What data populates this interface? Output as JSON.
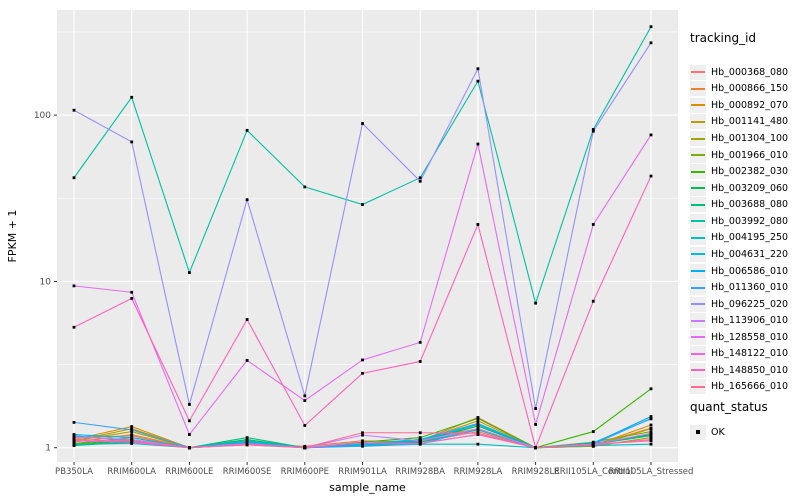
{
  "chart_data": {
    "type": "line",
    "title": "",
    "xlabel": "sample_name",
    "ylabel": "FPKM + 1",
    "y_scale": "log10",
    "y_ticks": [
      1,
      10,
      100
    ],
    "y_tick_labels": [
      "1",
      "10",
      "100"
    ],
    "y_minor_ticks": [
      3.162,
      31.623,
      316.228
    ],
    "ylim": [
      0.82,
      430
    ],
    "grid": "on",
    "legend_position": "right",
    "point_shape": "filled-square",
    "point_color": "#000000",
    "colors": {
      "panel_background": "#EBEBEB",
      "gridline": "#FFFFFF",
      "tick_text": "#4D4D4D",
      "tick_mark": "#333333"
    },
    "categories": [
      "PB350LA",
      "RRIM600LA",
      "RRIM600LE",
      "RRIM600SE",
      "RRIM600PE",
      "RRIM901LA",
      "RRIM928BA",
      "RRIM928LA",
      "RRIM928LE",
      "RRII105LA_Control",
      "RRII105LA_Stressed"
    ],
    "series": [
      {
        "name": "Hb_000368_080",
        "color": "#F8766D",
        "values": [
          1.15,
          1.18,
          1.0,
          1.05,
          1.02,
          1.1,
          1.08,
          1.25,
          1.0,
          1.05,
          1.2
        ]
      },
      {
        "name": "Hb_000866_150",
        "color": "#EB8335",
        "values": [
          1.08,
          1.2,
          1.0,
          1.06,
          1.0,
          1.05,
          1.1,
          1.52,
          1.0,
          1.04,
          1.31
        ]
      },
      {
        "name": "Hb_000892_070",
        "color": "#D89000",
        "values": [
          1.12,
          1.34,
          1.0,
          1.08,
          1.0,
          1.05,
          1.1,
          1.45,
          1.0,
          1.03,
          1.37
        ]
      },
      {
        "name": "Hb_001141_480",
        "color": "#C09B00",
        "values": [
          1.1,
          1.3,
          1.0,
          1.05,
          1.0,
          1.04,
          1.08,
          1.35,
          1.0,
          1.02,
          1.3
        ]
      },
      {
        "name": "Hb_001304_100",
        "color": "#A3A500",
        "values": [
          1.1,
          1.25,
          1.0,
          1.04,
          1.0,
          1.03,
          1.06,
          1.2,
          1.0,
          1.02,
          1.15
        ]
      },
      {
        "name": "Hb_001966_010",
        "color": "#7CAE00",
        "values": [
          1.06,
          1.15,
          1.0,
          1.1,
          1.0,
          1.06,
          1.12,
          1.3,
          1.0,
          1.08,
          1.25
        ]
      },
      {
        "name": "Hb_002382_030",
        "color": "#39B600",
        "values": [
          1.05,
          1.12,
          1.0,
          1.1,
          1.0,
          1.08,
          1.15,
          1.5,
          1.0,
          1.25,
          2.26
        ]
      },
      {
        "name": "Hb_003209_060",
        "color": "#00BB4E",
        "values": [
          1.04,
          1.1,
          1.0,
          1.12,
          1.0,
          1.05,
          1.1,
          1.35,
          1.0,
          1.06,
          1.2
        ]
      },
      {
        "name": "Hb_003688_080",
        "color": "#00BF7D",
        "values": [
          1.03,
          1.08,
          1.0,
          1.15,
          1.0,
          1.04,
          1.08,
          1.28,
          1.0,
          1.05,
          1.18
        ]
      },
      {
        "name": "Hb_003992_080",
        "color": "#00C1A3",
        "values": [
          42,
          128,
          11.3,
          81,
          37,
          29,
          42,
          160,
          7.4,
          82,
          340
        ]
      },
      {
        "name": "Hb_004195_250",
        "color": "#00BFC4",
        "values": [
          1.05,
          1.06,
          1.0,
          1.08,
          1.0,
          1.03,
          1.05,
          1.05,
          1.0,
          1.03,
          1.05
        ]
      },
      {
        "name": "Hb_004631_220",
        "color": "#00BAE0",
        "values": [
          1.2,
          1.15,
          1.0,
          1.1,
          1.0,
          1.05,
          1.12,
          1.4,
          1.0,
          1.07,
          1.49
        ]
      },
      {
        "name": "Hb_006586_010",
        "color": "#00B0F6",
        "values": [
          1.18,
          1.1,
          1.0,
          1.07,
          1.0,
          1.04,
          1.1,
          1.38,
          1.0,
          1.06,
          1.54
        ]
      },
      {
        "name": "Hb_011360_010",
        "color": "#35A2FF",
        "values": [
          1.42,
          1.28,
          1.0,
          1.05,
          1.0,
          1.02,
          1.05,
          1.3,
          1.0,
          1.05,
          1.5
        ]
      },
      {
        "name": "Hb_096225_020",
        "color": "#9590FF",
        "values": [
          107,
          69,
          1.82,
          31,
          2.05,
          89,
          40,
          190,
          1.72,
          80,
          272
        ]
      },
      {
        "name": "Hb_113906_010",
        "color": "#C77CFF",
        "values": [
          1.16,
          1.12,
          1.0,
          1.06,
          1.0,
          1.19,
          1.1,
          1.3,
          1.0,
          1.05,
          1.22
        ]
      },
      {
        "name": "Hb_128558_010",
        "color": "#E76BF3",
        "values": [
          9.4,
          8.6,
          1.2,
          3.35,
          1.92,
          3.37,
          4.3,
          67,
          1.38,
          22,
          76
        ]
      },
      {
        "name": "Hb_148122_010",
        "color": "#FA62DB",
        "values": [
          1.1,
          1.08,
          1.0,
          1.05,
          1.0,
          1.07,
          1.06,
          1.2,
          1.0,
          1.04,
          1.12
        ]
      },
      {
        "name": "Hb_148850_010",
        "color": "#FF62BC",
        "values": [
          5.3,
          7.9,
          1.45,
          5.9,
          1.36,
          2.8,
          3.3,
          22,
          1.0,
          7.6,
          43
        ]
      },
      {
        "name": "Hb_165666_010",
        "color": "#FF6A98",
        "values": [
          1.12,
          1.1,
          1.0,
          1.04,
          1.0,
          1.23,
          1.23,
          1.22,
          1.0,
          1.05,
          1.1
        ]
      }
    ],
    "legend": {
      "tracking_title": "tracking_id",
      "quant_title": "quant_status",
      "quant_value": "OK"
    }
  }
}
